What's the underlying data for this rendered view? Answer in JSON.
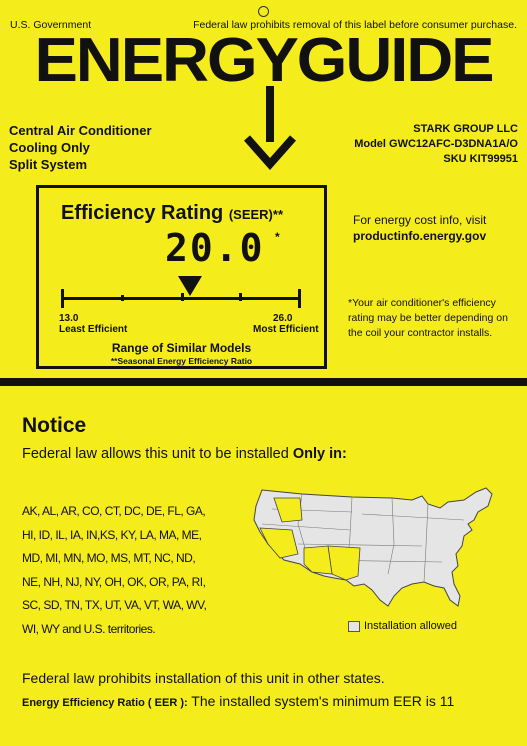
{
  "header": {
    "left": "U.S. Government",
    "right": "Federal law prohibits removal of this label before consumer purchase."
  },
  "title": "ENERGYGUIDE",
  "product": {
    "lines": [
      "Central Air Conditioner",
      "Cooling Only",
      "Split System"
    ]
  },
  "manufacturer": {
    "name": "STARK GROUP LLC",
    "model": "Model GWC12AFC-D3DNA1A/O",
    "sku": "SKU KIT99951"
  },
  "rating": {
    "title": "Efficiency Rating",
    "title_suffix": "(SEER)**",
    "value": "20.0",
    "value_mark": "*",
    "scale_min": 13.0,
    "scale_max": 26.0,
    "scale_min_label": "13.0",
    "scale_max_label": "26.0",
    "min_caption": "Least Efficient",
    "max_caption": "Most Efficient",
    "range_label": "Range of Similar Models",
    "range_note": "**Seasonal Energy Efficiency Ratio"
  },
  "cost_info": {
    "line1": "For energy cost info, visit",
    "url": "productinfo.energy.gov"
  },
  "footnote": "*Your air conditioner's efficiency rating may be better depending on the coil your contractor installs.",
  "notice": {
    "title": "Notice",
    "subtitle_prefix": "Federal law allows this unit to be installed ",
    "subtitle_bold": "Only in:",
    "states": [
      "AK, AL, AR, CO, CT, DC, DE, FL, GA,",
      "HI, ID, IL, IA, IN,KS, KY, LA, MA, ME,",
      "MD, MI, MN, MO, MS, MT, NC, ND,",
      "NE, NH, NJ, NY, OH, OK, OR, PA, RI,",
      "SC, SD, TN, TX, UT, VA, VT, WA, WV,",
      "WI, WY and U.S. territories."
    ],
    "legend": "Installation allowed"
  },
  "footer": {
    "law": "Federal law prohibits installation of this unit in other states.",
    "eer_label": "Energy Efficiency Ratio ( EER ):",
    "eer_text": " The installed system's minimum EER is 11"
  },
  "colors": {
    "label_yellow": "#f5ec1c",
    "ink": "#111111",
    "map_fill": "#e5e5e5"
  }
}
